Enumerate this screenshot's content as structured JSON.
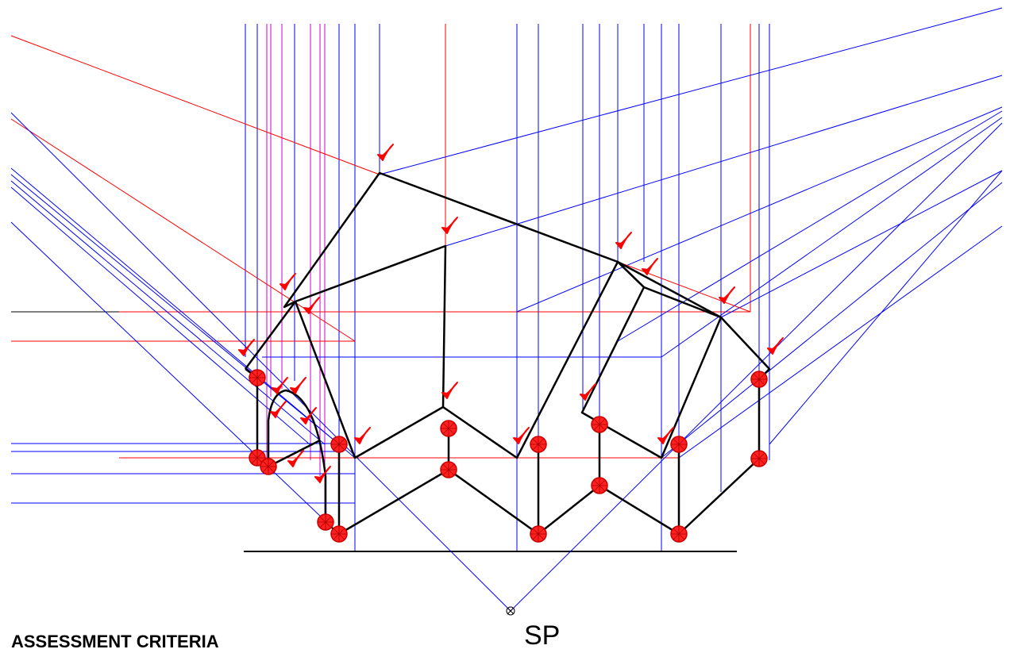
{
  "diagram": {
    "heading": "ASSESSMENT CRITERIA",
    "station_point_label": "SP",
    "colors": {
      "background": "#ffffff",
      "projector": "#0000ff",
      "measuring_line": "#ff0000",
      "auxiliary": "#cc00cc",
      "object_outline": "#000000",
      "marker": "#ff0000"
    },
    "icons": [
      "tick-mark-icon",
      "dot-marker-icon",
      "station-point-icon"
    ]
  }
}
